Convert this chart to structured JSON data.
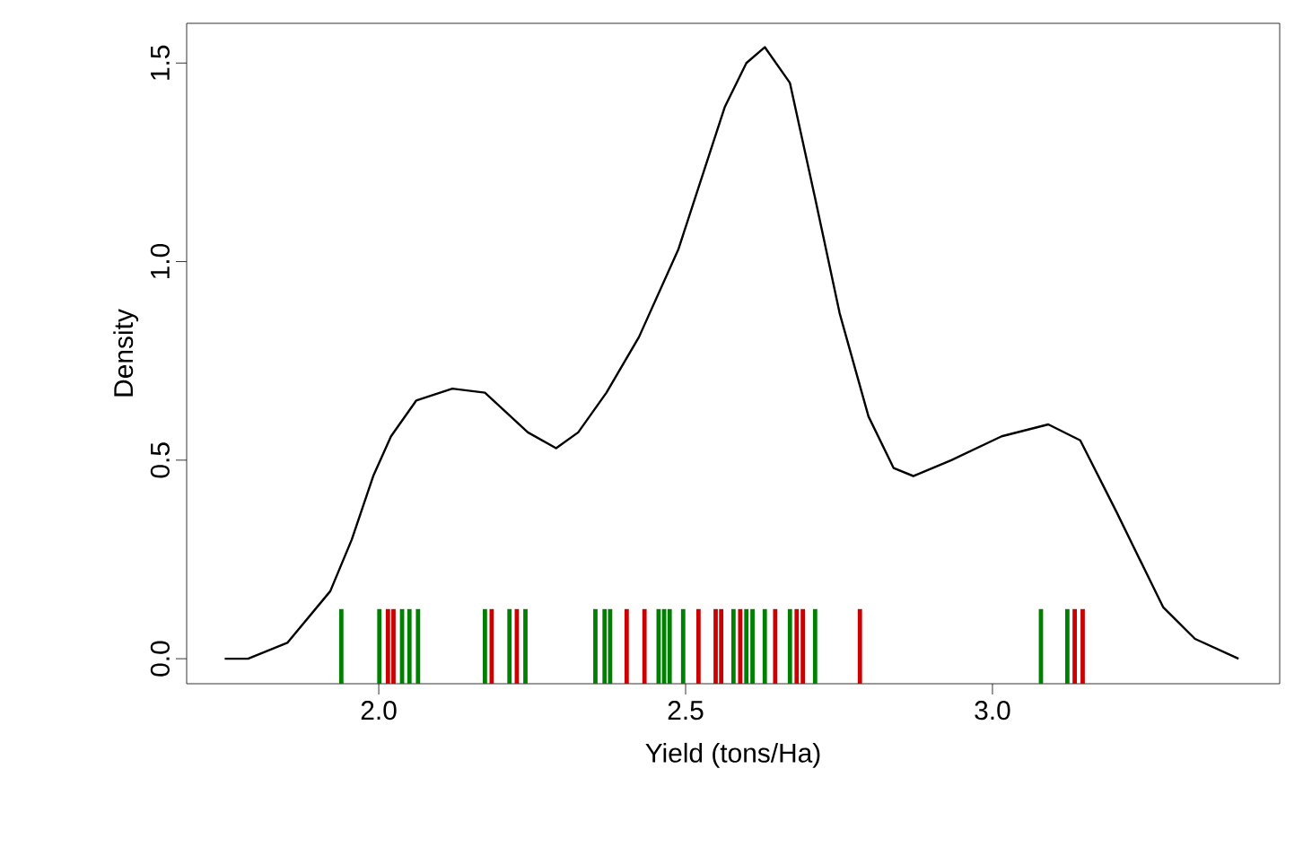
{
  "chart_data": {
    "type": "line",
    "xlabel": "Yield (tons/Ha)",
    "ylabel": "Density",
    "xlim": [
      1.687,
      3.468
    ],
    "ylim": [
      -0.063,
      1.6
    ],
    "xticks": [
      {
        "value": 2,
        "label": "2.0"
      },
      2.5,
      {
        "value": 3,
        "label": "3.0"
      }
    ],
    "yticks": [
      {
        "value": 0,
        "label": "0.0"
      },
      0.5,
      {
        "value": 1,
        "label": "1.0"
      },
      1.5
    ],
    "grid": false,
    "marker": "none",
    "line_style": "solid",
    "series": [
      {
        "color": "#000000",
        "x": [
          1.749,
          1.787,
          1.851,
          1.921,
          1.956,
          1.991,
          2.02,
          2.061,
          2.12,
          2.173,
          2.243,
          2.289,
          2.325,
          2.371,
          2.424,
          2.488,
          2.564,
          2.599,
          2.629,
          2.67,
          2.711,
          2.751,
          2.798,
          2.839,
          2.871,
          2.933,
          3.015,
          3.091,
          3.143,
          3.202,
          3.278,
          3.33,
          3.401
        ],
        "values": [
          0,
          0,
          0.04,
          0.17,
          0.3,
          0.46,
          0.56,
          0.65,
          0.68,
          0.67,
          0.57,
          0.53,
          0.57,
          0.67,
          0.81,
          1.03,
          1.39,
          1.5,
          1.54,
          1.45,
          1.16,
          0.87,
          0.61,
          0.48,
          0.46,
          0.5,
          0.56,
          0.59,
          0.55,
          0.37,
          0.13,
          0.05,
          0
        ]
      }
    ],
    "ref_lines": [
      {
        "axis": "x",
        "value": 1.939,
        "color": "#008000"
      },
      {
        "axis": "x",
        "value": 2.001,
        "color": "#008000"
      },
      {
        "axis": "x",
        "value": 2.015,
        "color": "#cc0000"
      },
      {
        "axis": "x",
        "value": 2.024,
        "color": "#cc0000"
      },
      {
        "axis": "x",
        "value": 2.038,
        "color": "#008000"
      },
      {
        "axis": "x",
        "value": 2.05,
        "color": "#008000"
      },
      {
        "axis": "x",
        "value": 2.064,
        "color": "#008000"
      },
      {
        "axis": "x",
        "value": 2.173,
        "color": "#008000"
      },
      {
        "axis": "x",
        "value": 2.184,
        "color": "#cc0000"
      },
      {
        "axis": "x",
        "value": 2.213,
        "color": "#008000"
      },
      {
        "axis": "x",
        "value": 2.225,
        "color": "#cc0000"
      },
      {
        "axis": "x",
        "value": 2.239,
        "color": "#008000"
      },
      {
        "axis": "x",
        "value": 2.353,
        "color": "#008000"
      },
      {
        "axis": "x",
        "value": 2.368,
        "color": "#008000"
      },
      {
        "axis": "x",
        "value": 2.377,
        "color": "#008000"
      },
      {
        "axis": "x",
        "value": 2.404,
        "color": "#cc0000"
      },
      {
        "axis": "x",
        "value": 2.433,
        "color": "#cc0000"
      },
      {
        "axis": "x",
        "value": 2.456,
        "color": "#008000"
      },
      {
        "axis": "x",
        "value": 2.465,
        "color": "#008000"
      },
      {
        "axis": "x",
        "value": 2.474,
        "color": "#008000"
      },
      {
        "axis": "x",
        "value": 2.496,
        "color": "#008000"
      },
      {
        "axis": "x",
        "value": 2.521,
        "color": "#cc0000"
      },
      {
        "axis": "x",
        "value": 2.549,
        "color": "#cc0000"
      },
      {
        "axis": "x",
        "value": 2.558,
        "color": "#cc0000"
      },
      {
        "axis": "x",
        "value": 2.578,
        "color": "#008000"
      },
      {
        "axis": "x",
        "value": 2.589,
        "color": "#cc0000"
      },
      {
        "axis": "x",
        "value": 2.599,
        "color": "#008000"
      },
      {
        "axis": "x",
        "value": 2.609,
        "color": "#008000"
      },
      {
        "axis": "x",
        "value": 2.629,
        "color": "#008000"
      },
      {
        "axis": "x",
        "value": 2.646,
        "color": "#cc0000"
      },
      {
        "axis": "x",
        "value": 2.67,
        "color": "#008000"
      },
      {
        "axis": "x",
        "value": 2.681,
        "color": "#cc0000"
      },
      {
        "axis": "x",
        "value": 2.691,
        "color": "#cc0000"
      },
      {
        "axis": "x",
        "value": 2.711,
        "color": "#008000"
      },
      {
        "axis": "x",
        "value": 2.784,
        "color": "#cc0000"
      },
      {
        "axis": "x",
        "value": 3.079,
        "color": "#008000"
      },
      {
        "axis": "x",
        "value": 3.122,
        "color": "#008000"
      },
      {
        "axis": "x",
        "value": 3.134,
        "color": "#cc0000"
      },
      {
        "axis": "x",
        "value": 3.147,
        "color": "#cc0000"
      }
    ]
  }
}
